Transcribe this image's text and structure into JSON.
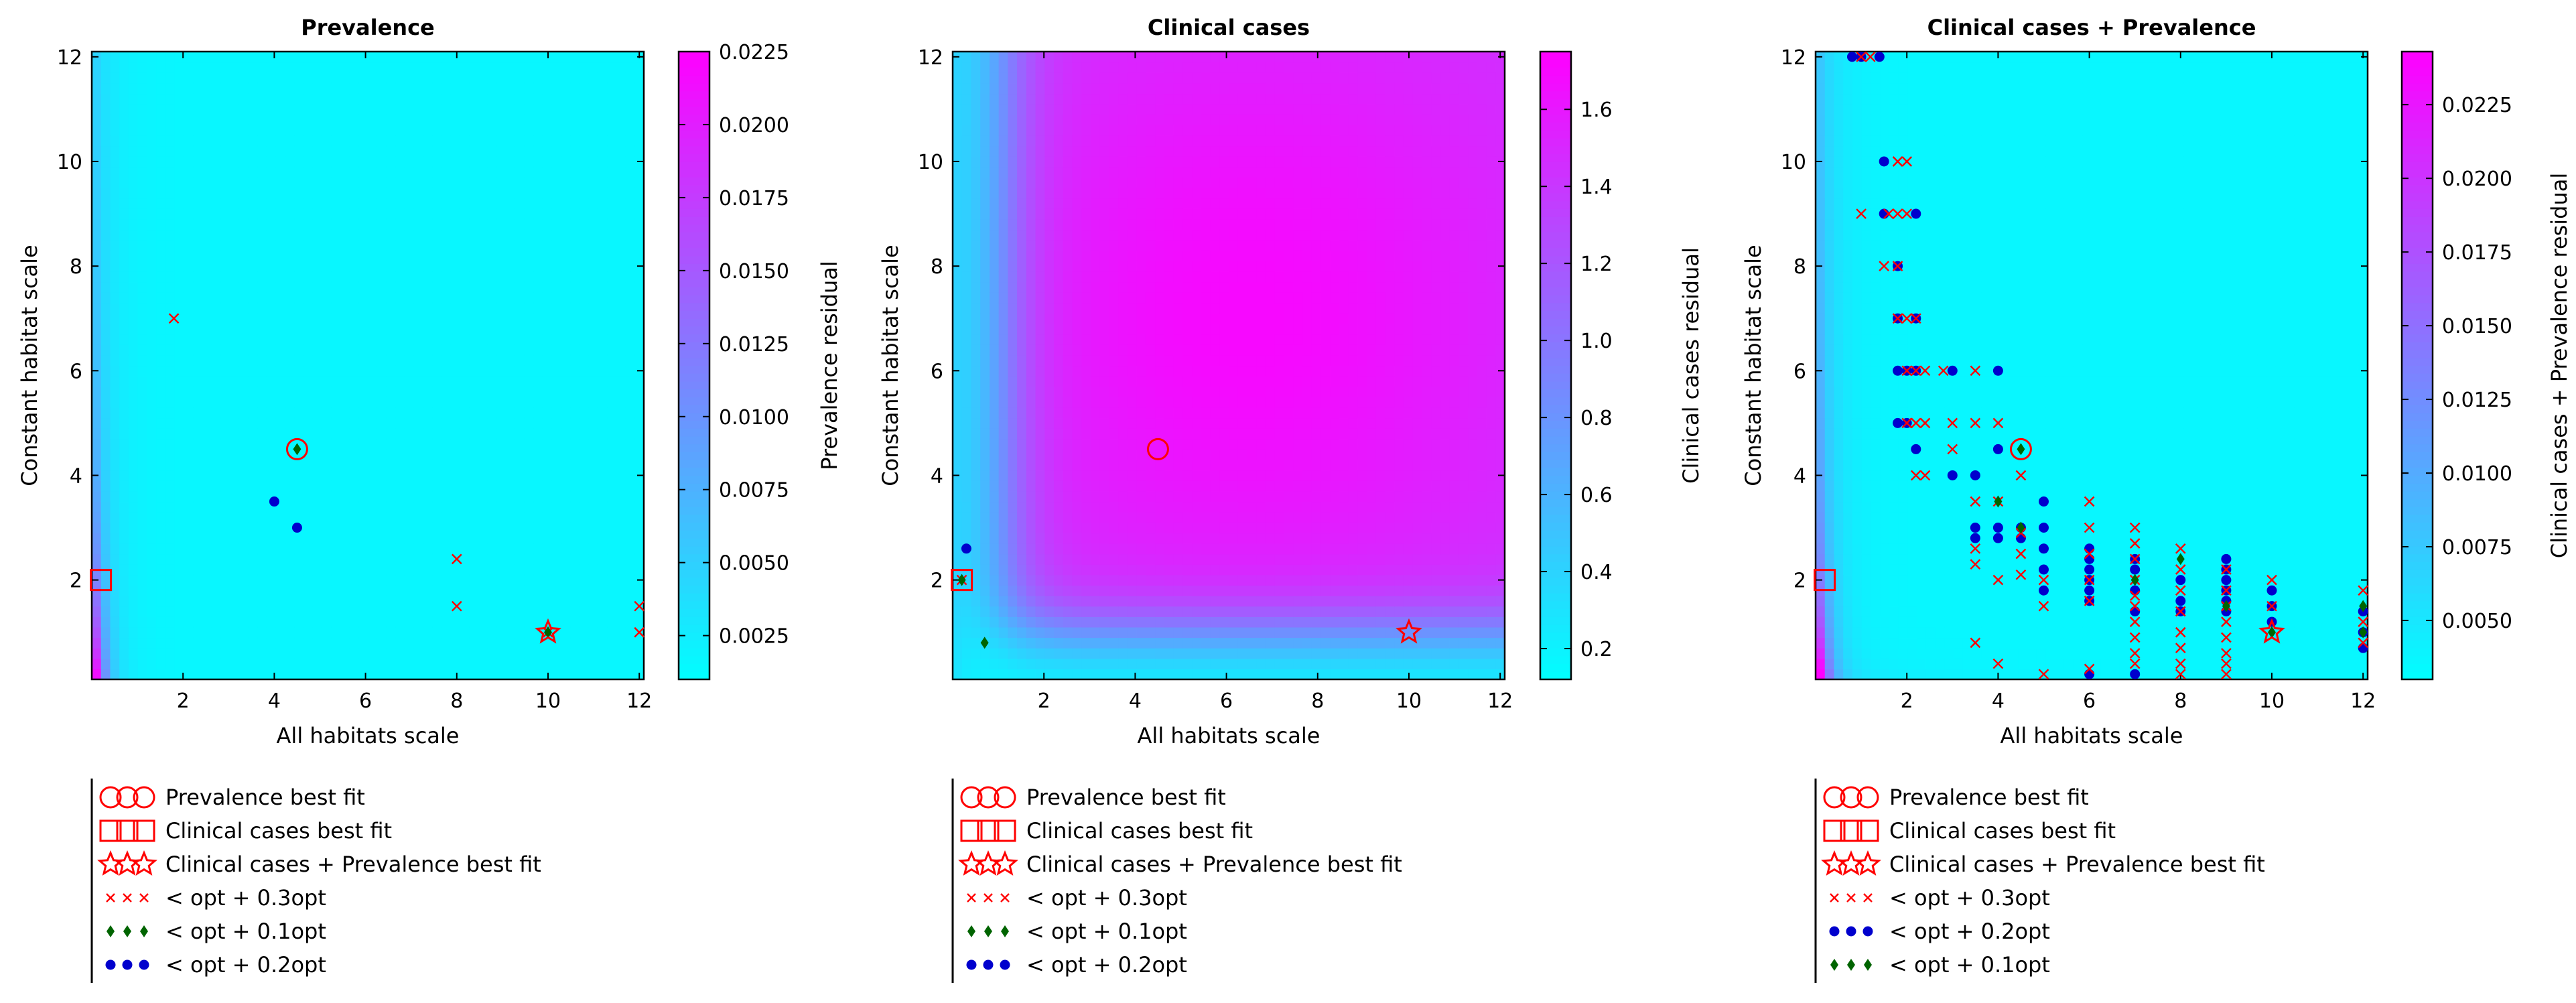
{
  "colors": {
    "low": "#00ffff",
    "high": "#ff00ff",
    "red": "#ff0000",
    "green": "#006400",
    "blue": "#0000cd"
  },
  "figure_text": {
    "xlabel": "All habitats scale",
    "ylabel": "Constant habitat scale"
  },
  "chart_data": [
    {
      "type": "heatmap",
      "title": "Prevalence",
      "xlabel": "All habitats scale",
      "ylabel": "Constant habitat scale",
      "xlim": [
        0,
        12.1
      ],
      "ylim": [
        0.1,
        12.1
      ],
      "x_ticks": [
        2,
        4,
        6,
        8,
        10,
        12
      ],
      "y_ticks": [
        2,
        4,
        6,
        8,
        10,
        12
      ],
      "field": "prevalence",
      "colorbar": {
        "label": "Prevalence residual",
        "min": 0.001,
        "max": 0.0225,
        "ticks": [
          0.0025,
          0.005,
          0.0075,
          0.01,
          0.0125,
          0.015,
          0.0175,
          0.02,
          0.0225
        ],
        "tick_labels": [
          "0.0025",
          "0.0050",
          "0.0075",
          "0.0100",
          "0.0125",
          "0.0150",
          "0.0175",
          "0.0200",
          "0.0225"
        ]
      },
      "markers": {
        "prevalence_best": [
          4.5,
          4.5
        ],
        "clinical_best": [
          0.2,
          2.0
        ],
        "combined_best": [
          10,
          1.0
        ],
        "opt_03": [
          [
            1.8,
            7.0
          ],
          [
            8,
            2.4
          ],
          [
            8,
            1.5
          ],
          [
            12,
            1.5
          ],
          [
            12,
            1.0
          ],
          [
            10,
            1.0
          ]
        ],
        "opt_01": [
          [
            4.5,
            4.5
          ],
          [
            10,
            1.0
          ]
        ],
        "opt_02": [
          [
            4.0,
            3.5
          ],
          [
            4.5,
            3.0
          ]
        ]
      },
      "legend": [
        {
          "marker": "circle",
          "label": "Prevalence best fit"
        },
        {
          "marker": "square",
          "label": "Clinical cases best fit"
        },
        {
          "marker": "star",
          "label": "Clinical cases + Prevalence best fit"
        },
        {
          "marker": "x",
          "label": "< opt + 0.3opt"
        },
        {
          "marker": "diamond",
          "label": "< opt + 0.1opt"
        },
        {
          "marker": "dot",
          "label": "< opt + 0.2opt"
        }
      ]
    },
    {
      "type": "heatmap",
      "title": "Clinical cases",
      "xlabel": "All habitats scale",
      "ylabel": "Constant habitat scale",
      "xlim": [
        0,
        12.1
      ],
      "ylim": [
        0.1,
        12.1
      ],
      "x_ticks": [
        2,
        4,
        6,
        8,
        10,
        12
      ],
      "y_ticks": [
        2,
        4,
        6,
        8,
        10,
        12
      ],
      "field": "clinical",
      "colorbar": {
        "label": "Clinical cases residual",
        "min": 0.12,
        "max": 1.75,
        "ticks": [
          0.2,
          0.4,
          0.6,
          0.8,
          1.0,
          1.2,
          1.4,
          1.6
        ],
        "tick_labels": [
          "0.2",
          "0.4",
          "0.6",
          "0.8",
          "1.0",
          "1.2",
          "1.4",
          "1.6"
        ]
      },
      "markers": {
        "prevalence_best": [
          4.5,
          4.5
        ],
        "clinical_best": [
          0.2,
          2.0
        ],
        "combined_best": [
          10,
          1.0
        ],
        "opt_03": [
          [
            0.2,
            2.0
          ]
        ],
        "opt_01": [
          [
            0.2,
            2.0
          ],
          [
            0.7,
            0.8
          ]
        ],
        "opt_02": [
          [
            0.3,
            2.6
          ]
        ]
      },
      "legend": [
        {
          "marker": "circle",
          "label": "Prevalence best fit"
        },
        {
          "marker": "square",
          "label": "Clinical cases best fit"
        },
        {
          "marker": "star",
          "label": "Clinical cases + Prevalence best fit"
        },
        {
          "marker": "x",
          "label": "< opt + 0.3opt"
        },
        {
          "marker": "diamond",
          "label": "< opt + 0.1opt"
        },
        {
          "marker": "dot",
          "label": "< opt + 0.2opt"
        }
      ]
    },
    {
      "type": "heatmap",
      "title": "Clinical cases + Prevalence",
      "xlabel": "All habitats scale",
      "ylabel": "Constant habitat scale",
      "xlim": [
        0,
        12.1
      ],
      "ylim": [
        0.1,
        12.1
      ],
      "x_ticks": [
        2,
        4,
        6,
        8,
        10,
        12
      ],
      "y_ticks": [
        2,
        4,
        6,
        8,
        10,
        12
      ],
      "field": "combined",
      "colorbar": {
        "label": "Clinical cases + Prevalence residual",
        "min": 0.003,
        "max": 0.0243,
        "ticks": [
          0.005,
          0.0075,
          0.01,
          0.0125,
          0.015,
          0.0175,
          0.02,
          0.0225
        ],
        "tick_labels": [
          "0.0050",
          "0.0075",
          "0.0100",
          "0.0125",
          "0.0150",
          "0.0175",
          "0.0200",
          "0.0225"
        ]
      },
      "markers": {
        "prevalence_best": [
          4.5,
          4.5
        ],
        "clinical_best": [
          0.2,
          2.0
        ],
        "combined_best": [
          10,
          1.0
        ],
        "opt_03": [
          [
            1.0,
            12
          ],
          [
            1.2,
            12
          ],
          [
            1.0,
            9
          ],
          [
            1.6,
            9
          ],
          [
            1.8,
            9
          ],
          [
            2.0,
            9
          ],
          [
            1.8,
            10
          ],
          [
            2.0,
            10
          ],
          [
            1.5,
            8
          ],
          [
            1.8,
            8
          ],
          [
            1.8,
            7
          ],
          [
            2.0,
            7
          ],
          [
            2.2,
            7
          ],
          [
            2.0,
            6
          ],
          [
            2.2,
            6
          ],
          [
            2.4,
            6
          ],
          [
            2.8,
            6
          ],
          [
            3.5,
            6
          ],
          [
            2.0,
            5
          ],
          [
            2.2,
            5
          ],
          [
            2.4,
            5
          ],
          [
            3.0,
            5
          ],
          [
            3.5,
            5
          ],
          [
            2.2,
            4
          ],
          [
            2.4,
            4
          ],
          [
            3.0,
            4.5
          ],
          [
            4.0,
            5
          ],
          [
            4.5,
            4
          ],
          [
            3.5,
            3.5
          ],
          [
            4.0,
            3.5
          ],
          [
            3.5,
            2.6
          ],
          [
            3.5,
            2.3
          ],
          [
            4.0,
            2.0
          ],
          [
            4.5,
            2.9
          ],
          [
            4.5,
            2.5
          ],
          [
            4.5,
            2.1
          ],
          [
            5,
            2.0
          ],
          [
            5,
            1.5
          ],
          [
            6,
            3.5
          ],
          [
            6,
            3.0
          ],
          [
            6,
            2.5
          ],
          [
            6,
            2.0
          ],
          [
            6,
            1.6
          ],
          [
            7,
            3.0
          ],
          [
            7,
            2.7
          ],
          [
            7,
            2.4
          ],
          [
            7,
            2.0
          ],
          [
            7,
            1.7
          ],
          [
            7,
            1.5
          ],
          [
            7,
            1.2
          ],
          [
            7,
            0.9
          ],
          [
            7,
            0.6
          ],
          [
            7,
            0.4
          ],
          [
            8,
            2.6
          ],
          [
            8,
            2.2
          ],
          [
            8,
            1.8
          ],
          [
            8,
            1.4
          ],
          [
            8,
            1.0
          ],
          [
            8,
            0.7
          ],
          [
            8,
            0.4
          ],
          [
            9,
            2.2
          ],
          [
            9,
            1.8
          ],
          [
            9,
            1.5
          ],
          [
            9,
            1.2
          ],
          [
            9,
            0.9
          ],
          [
            9,
            0.6
          ],
          [
            9,
            0.4
          ],
          [
            9,
            0.2
          ],
          [
            10,
            2.0
          ],
          [
            10,
            1.5
          ],
          [
            12,
            1.8
          ],
          [
            12,
            1.2
          ],
          [
            12,
            0.8
          ],
          [
            3.5,
            0.8
          ],
          [
            4.0,
            0.4
          ],
          [
            5,
            0.2
          ],
          [
            6,
            0.3
          ],
          [
            8,
            0.2
          ]
        ],
        "opt_01": [
          [
            4.5,
            4.5
          ],
          [
            4.0,
            3.5
          ],
          [
            4.5,
            3.0
          ],
          [
            7,
            2.0
          ],
          [
            8,
            2.4
          ],
          [
            9,
            1.5
          ],
          [
            10,
            1.0
          ],
          [
            12,
            1.5
          ],
          [
            12,
            1.0
          ]
        ],
        "opt_02": [
          [
            0.8,
            12
          ],
          [
            1.0,
            12
          ],
          [
            1.4,
            12
          ],
          [
            1.5,
            10
          ],
          [
            1.5,
            9
          ],
          [
            2.2,
            9
          ],
          [
            1.8,
            8
          ],
          [
            1.8,
            7
          ],
          [
            2.2,
            7
          ],
          [
            1.8,
            6
          ],
          [
            2.0,
            6
          ],
          [
            2.2,
            6
          ],
          [
            3.0,
            6
          ],
          [
            4.0,
            6
          ],
          [
            1.8,
            5
          ],
          [
            2.0,
            5
          ],
          [
            2.2,
            4.5
          ],
          [
            3.0,
            4
          ],
          [
            3.5,
            4
          ],
          [
            4.0,
            4.5
          ],
          [
            5,
            3.5
          ],
          [
            5,
            3.0
          ],
          [
            5,
            2.6
          ],
          [
            5,
            2.2
          ],
          [
            5,
            1.8
          ],
          [
            4.0,
            3.0
          ],
          [
            4.0,
            2.8
          ],
          [
            3.5,
            3.0
          ],
          [
            3.5,
            2.8
          ],
          [
            4.5,
            3.0
          ],
          [
            4.5,
            2.8
          ],
          [
            6,
            2.6
          ],
          [
            6,
            2.4
          ],
          [
            6,
            2.2
          ],
          [
            6,
            2.0
          ],
          [
            6,
            1.8
          ],
          [
            6,
            1.6
          ],
          [
            7,
            2.4
          ],
          [
            7,
            2.2
          ],
          [
            7,
            1.8
          ],
          [
            7,
            1.4
          ],
          [
            8,
            2.0
          ],
          [
            8,
            1.6
          ],
          [
            8,
            1.4
          ],
          [
            9,
            2.4
          ],
          [
            9,
            2.2
          ],
          [
            9,
            2.0
          ],
          [
            9,
            1.8
          ],
          [
            9,
            1.6
          ],
          [
            9,
            1.4
          ],
          [
            10,
            1.8
          ],
          [
            10,
            1.5
          ],
          [
            10,
            1.2
          ],
          [
            12,
            1.4
          ],
          [
            12,
            1.0
          ],
          [
            12,
            0.7
          ],
          [
            7,
            0.2
          ],
          [
            6,
            0.2
          ]
        ]
      },
      "legend": [
        {
          "marker": "circle",
          "label": "Prevalence best fit"
        },
        {
          "marker": "square",
          "label": "Clinical cases best fit"
        },
        {
          "marker": "star",
          "label": "Clinical cases + Prevalence best fit"
        },
        {
          "marker": "x",
          "label": "< opt + 0.3opt"
        },
        {
          "marker": "dot",
          "label": "< opt + 0.2opt"
        },
        {
          "marker": "diamond",
          "label": "< opt + 0.1opt"
        }
      ]
    }
  ]
}
